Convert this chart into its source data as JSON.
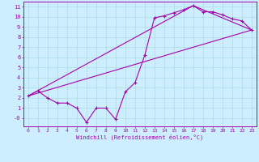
{
  "bg_color": "#cceeff",
  "line_color": "#aa00aa",
  "grid_color": "#aadddd",
  "xlabel": "Windchill (Refroidissement éolien,°C)",
  "xlim": [
    -0.5,
    23.5
  ],
  "ylim": [
    -0.8,
    11.5
  ],
  "xticks": [
    0,
    1,
    2,
    3,
    4,
    5,
    6,
    7,
    8,
    9,
    10,
    11,
    12,
    13,
    14,
    15,
    16,
    17,
    18,
    19,
    20,
    21,
    22,
    23
  ],
  "yticks": [
    0,
    1,
    2,
    3,
    4,
    5,
    6,
    7,
    8,
    9,
    10,
    11
  ],
  "ytick_labels": [
    "-0",
    "1",
    "2",
    "3",
    "4",
    "5",
    "6",
    "7",
    "8",
    "9",
    "10",
    "11"
  ],
  "line1_x": [
    0,
    1,
    2,
    3,
    4,
    5,
    6,
    7,
    8,
    9,
    10,
    11,
    12,
    13,
    14,
    15,
    16,
    17,
    18,
    19,
    20,
    21,
    22,
    23
  ],
  "line1_y": [
    2.2,
    2.7,
    2.0,
    1.5,
    1.5,
    1.0,
    -0.4,
    1.0,
    1.0,
    -0.1,
    2.6,
    3.5,
    6.2,
    9.9,
    10.1,
    10.4,
    10.7,
    11.1,
    10.5,
    10.5,
    10.2,
    9.8,
    9.6,
    8.7
  ],
  "line2_x": [
    0,
    23
  ],
  "line2_y": [
    2.2,
    8.7
  ],
  "line3_x": [
    0,
    17,
    23
  ],
  "line3_y": [
    2.2,
    11.1,
    8.7
  ]
}
